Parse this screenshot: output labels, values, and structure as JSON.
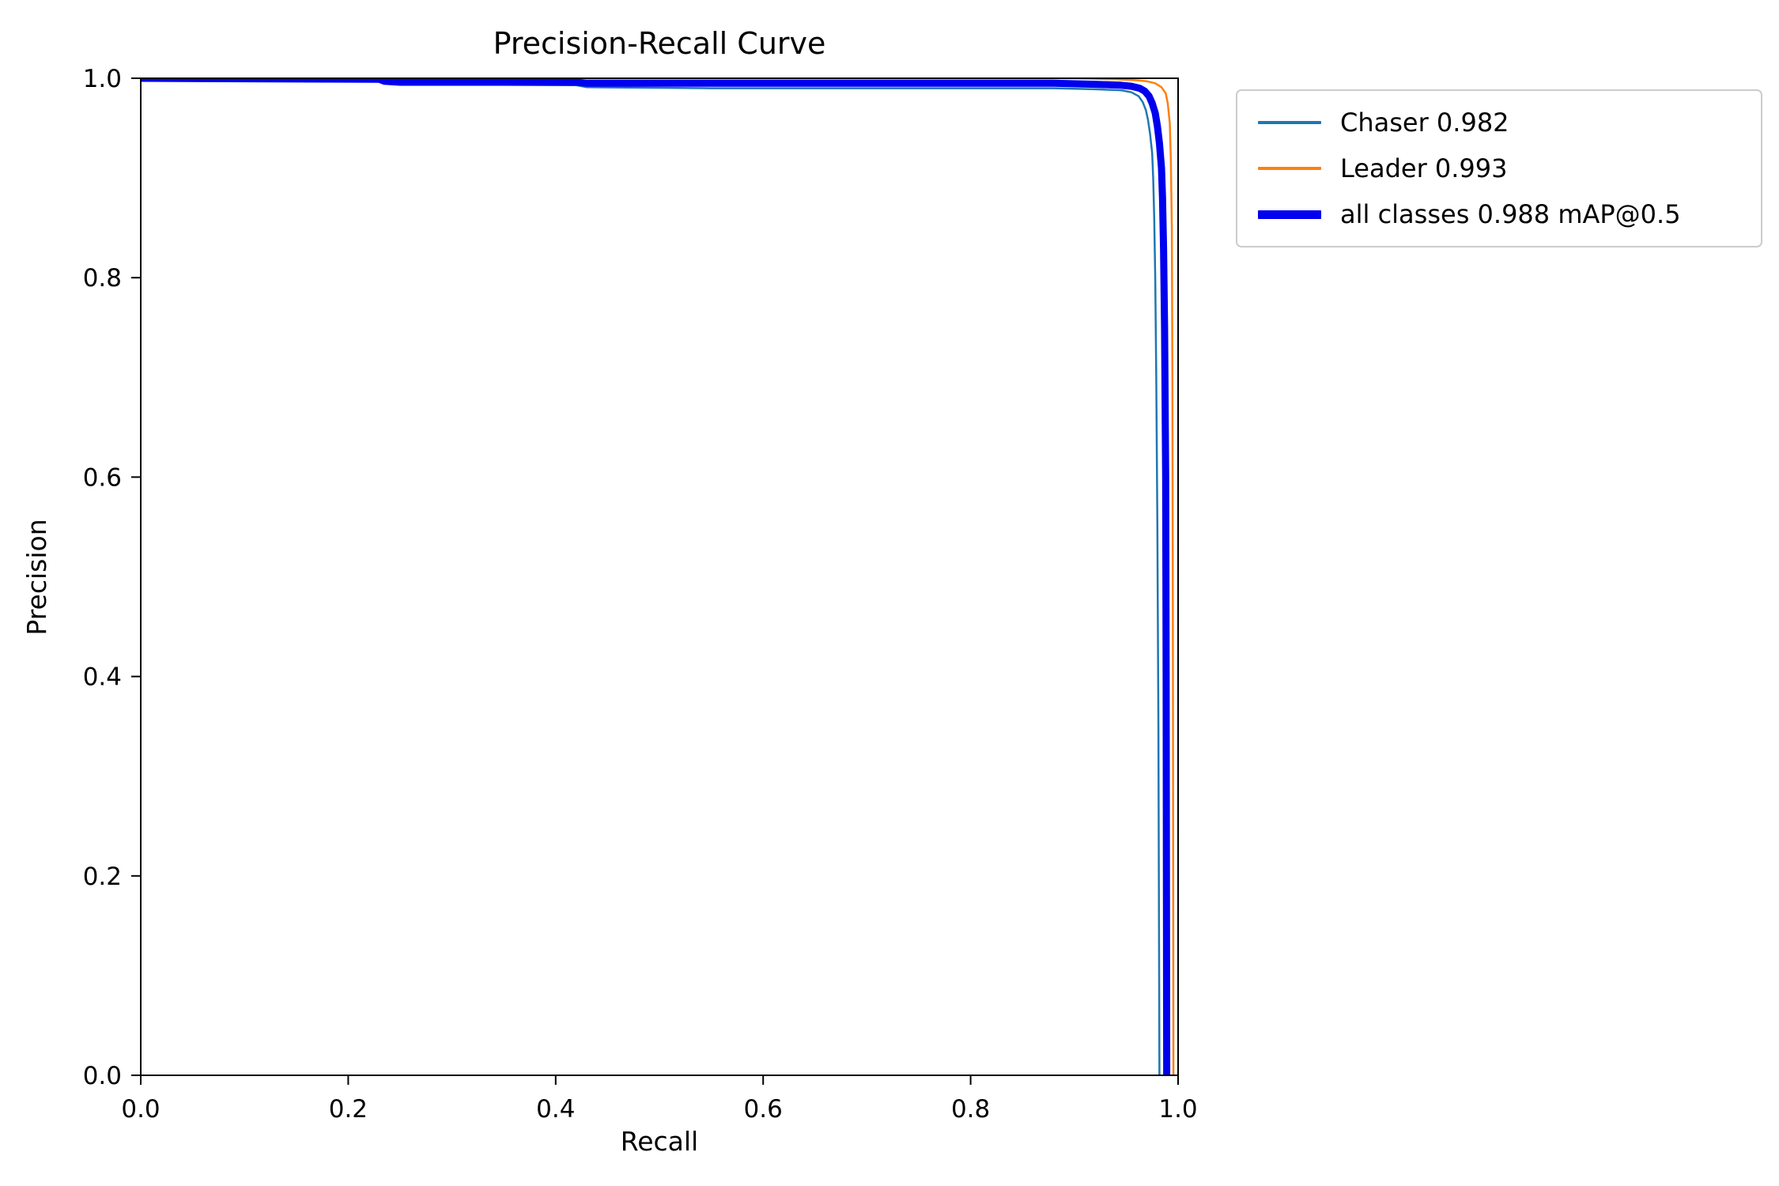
{
  "chart_data": {
    "type": "line",
    "title": "Precision-Recall Curve",
    "xlabel": "Recall",
    "ylabel": "Precision",
    "xlim": [
      0.0,
      1.0
    ],
    "ylim": [
      0.0,
      1.0
    ],
    "grid": false,
    "legend_position": "outside-upper-right",
    "xticks": {
      "values": [
        0.0,
        0.2,
        0.4,
        0.6,
        0.8,
        1.0
      ],
      "labels": [
        "0.0",
        "0.2",
        "0.4",
        "0.6",
        "0.8",
        "1.0"
      ]
    },
    "yticks": {
      "values": [
        0.0,
        0.2,
        0.4,
        0.6,
        0.8,
        1.0
      ],
      "labels": [
        "0.0",
        "0.2",
        "0.4",
        "0.6",
        "0.8",
        "1.0"
      ]
    },
    "series": [
      {
        "name": "Chaser",
        "label": "Chaser 0.982",
        "ap": 0.982,
        "color": "#1f77b4",
        "width": 2.5,
        "points": [
          [
            0.0,
            1.0
          ],
          [
            0.23,
            0.998
          ],
          [
            0.235,
            0.995
          ],
          [
            0.25,
            0.994
          ],
          [
            0.42,
            0.993
          ],
          [
            0.43,
            0.991
          ],
          [
            0.55,
            0.99
          ],
          [
            0.88,
            0.99
          ],
          [
            0.92,
            0.989
          ],
          [
            0.945,
            0.988
          ],
          [
            0.955,
            0.986
          ],
          [
            0.962,
            0.982
          ],
          [
            0.966,
            0.976
          ],
          [
            0.969,
            0.968
          ],
          [
            0.971,
            0.958
          ],
          [
            0.973,
            0.944
          ],
          [
            0.975,
            0.925
          ],
          [
            0.976,
            0.9
          ],
          [
            0.977,
            0.86
          ],
          [
            0.978,
            0.8
          ],
          [
            0.979,
            0.7
          ],
          [
            0.98,
            0.55
          ],
          [
            0.981,
            0.35
          ],
          [
            0.982,
            0.0
          ]
        ]
      },
      {
        "name": "Leader",
        "label": "Leader 0.993",
        "ap": 0.993,
        "color": "#ff7f0e",
        "width": 2.5,
        "points": [
          [
            0.0,
            1.0
          ],
          [
            0.9,
            1.0
          ],
          [
            0.94,
            0.999
          ],
          [
            0.96,
            0.998
          ],
          [
            0.97,
            0.997
          ],
          [
            0.978,
            0.995
          ],
          [
            0.984,
            0.991
          ],
          [
            0.988,
            0.985
          ],
          [
            0.99,
            0.975
          ],
          [
            0.992,
            0.955
          ],
          [
            0.993,
            0.92
          ],
          [
            0.994,
            0.85
          ],
          [
            0.9945,
            0.7
          ],
          [
            0.995,
            0.45
          ],
          [
            0.9955,
            0.0
          ]
        ]
      },
      {
        "name": "all classes",
        "label": "all classes 0.988 mAP@0.5",
        "ap": 0.988,
        "map_threshold": "0.5",
        "color": "#0000ee",
        "width": 9,
        "points": [
          [
            0.0,
            1.0
          ],
          [
            0.23,
            0.999
          ],
          [
            0.235,
            0.997
          ],
          [
            0.25,
            0.996
          ],
          [
            0.42,
            0.996
          ],
          [
            0.43,
            0.995
          ],
          [
            0.55,
            0.995
          ],
          [
            0.88,
            0.995
          ],
          [
            0.92,
            0.994
          ],
          [
            0.945,
            0.993
          ],
          [
            0.955,
            0.992
          ],
          [
            0.963,
            0.99
          ],
          [
            0.968,
            0.987
          ],
          [
            0.972,
            0.982
          ],
          [
            0.975,
            0.975
          ],
          [
            0.978,
            0.965
          ],
          [
            0.98,
            0.952
          ],
          [
            0.982,
            0.935
          ],
          [
            0.984,
            0.91
          ],
          [
            0.985,
            0.88
          ],
          [
            0.986,
            0.83
          ],
          [
            0.987,
            0.75
          ],
          [
            0.988,
            0.6
          ],
          [
            0.9885,
            0.4
          ],
          [
            0.989,
            0.0
          ]
        ]
      }
    ]
  }
}
